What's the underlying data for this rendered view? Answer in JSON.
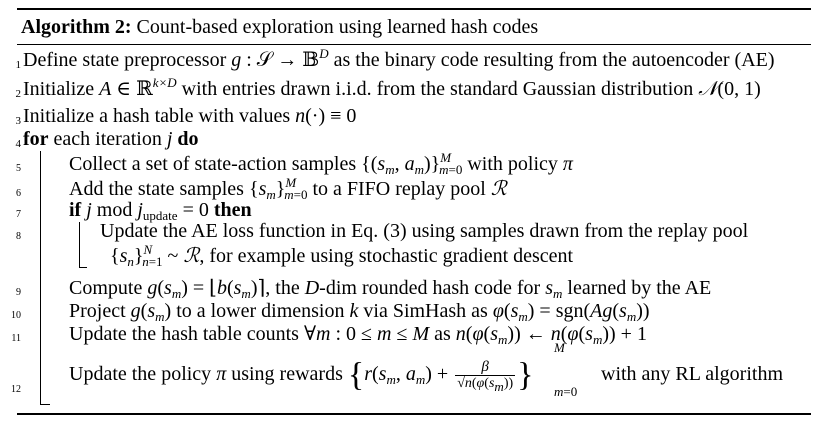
{
  "algorithm": {
    "caption_label": "Algorithm 2:",
    "caption_text": "Count-based exploration using learned hash codes",
    "lines": [
      {
        "num": "1",
        "text": "Define state preprocessor g : S → B^D as the binary code resulting from the autoencoder (AE)"
      },
      {
        "num": "2",
        "text": "Initialize A ∈ R^{k×D} with entries drawn i.i.d. from the standard Gaussian distribution N(0, 1)"
      },
      {
        "num": "3",
        "text": "Initialize a hash table with values n(·) ≡ 0"
      },
      {
        "num": "4",
        "text": "for each iteration j do"
      },
      {
        "num": "5",
        "text": "Collect a set of state-action samples {(s_m, a_m)}_{m=0}^M with policy π"
      },
      {
        "num": "6",
        "text": "Add the state samples {s_m}_{m=0}^M to a FIFO replay pool R"
      },
      {
        "num": "7",
        "text": "if j mod j_update = 0 then"
      },
      {
        "num": "8",
        "text": "Update the AE loss function in Eq. (3) using samples drawn from the replay pool {s_n}_{n=1}^N ~ R, for example using stochastic gradient descent"
      },
      {
        "num": "9",
        "text": "Compute g(s_m) = ⌊b(s_m)⌉, the D-dim rounded hash code for s_m learned by the AE"
      },
      {
        "num": "10",
        "text": "Project g(s_m) to a lower dimension k via SimHash as φ(s_m) = sgn(Ag(s_m))"
      },
      {
        "num": "11",
        "text": "Update the hash table counts ∀m : 0 ≤ m ≤ M as n(φ(s_m)) ← n(φ(s_m)) + 1"
      },
      {
        "num": "12",
        "text": "Update the policy π using rewards {r(s_m, a_m) + β/√n(φ(s_m))}_{m=0}^M with any RL algorithm"
      }
    ],
    "strings": {
      "l1a": "Define state preprocessor ",
      "l1b": " as the binary code resulting from the autoencoder (AE)",
      "l2a": "Initialize ",
      "l2b": " with entries drawn i.i.d. from the standard Gaussian distribution ",
      "l3a": "Initialize a hash table with values ",
      "l4kw": "for",
      "l4a": " each iteration ",
      "l4kw2": "do",
      "l5a": "Collect a set of state-action samples ",
      "l5b": " with policy ",
      "l6a": "Add the state samples ",
      "l6b": " to a FIFO replay pool ",
      "l7kw": "if",
      "l7kw2": "then",
      "l8a": "Update the AE loss function in Eq. (3) using samples drawn from the replay pool",
      "l8b": ", for example using stochastic gradient descent",
      "l9a": "Compute ",
      "l9b": ", the ",
      "l9c": "-dim rounded hash code for ",
      "l9d": " learned by the AE",
      "l10a": "Project ",
      "l10b": " to a lower dimension ",
      "l10c": " via SimHash as ",
      "l11a": "Update the hash table counts ",
      "l11b": " as ",
      "l12a": "Update the policy ",
      "l12b": " using rewards ",
      "l12c": "with any RL algorithm"
    }
  }
}
